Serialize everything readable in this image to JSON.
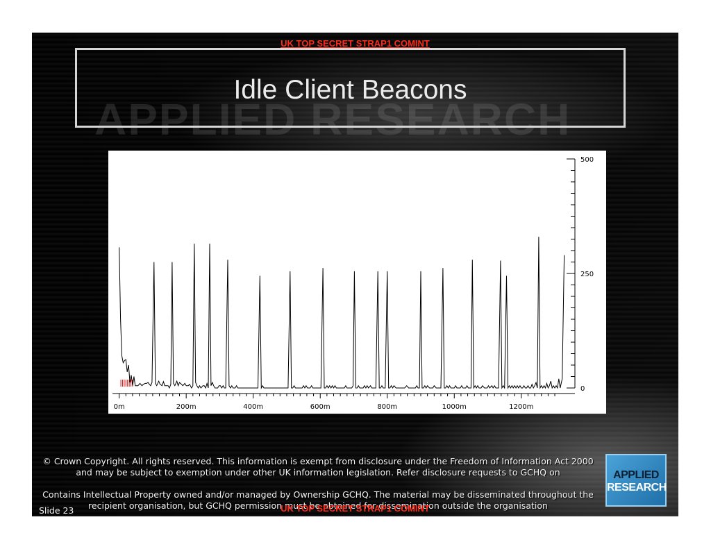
{
  "classification": "UK TOP SECRET STRAP1 COMINT",
  "watermark": "APPLIED RESEARCH",
  "title": "Idle Client Beacons",
  "copyright": [
    "© Crown Copyright. All rights reserved. This information is exempt from disclosure under the Freedom of Information Act 2000 and may be subject to exemption under other UK information legislation. Refer disclosure requests to GCHQ on",
    "Contains Intellectual Property owned and/or managed by Ownership GCHQ. The material may be disseminated throughout the recipient organisation, but GCHQ permission must be obtained for dissemination outside the organisation"
  ],
  "slide_number": "Slide 23",
  "logo": {
    "line1": "APPLIED",
    "line2": "RESEARCH"
  },
  "colors": {
    "classification": "#ff2a1a",
    "logo": "#3a90c8",
    "trace": "#000000",
    "markers": "#e01010"
  },
  "chart_data": {
    "type": "line",
    "title": "",
    "xlabel": "",
    "ylabel": "",
    "x_ticks": [
      "0m",
      "200m",
      "400m",
      "600m",
      "800m",
      "1000m",
      "1200m"
    ],
    "y_ticks": [
      "0",
      "250",
      "500"
    ],
    "xlim_minutes": [
      -20,
      1360
    ],
    "ylim": [
      0,
      500
    ],
    "grid": false,
    "y_axis_side": "right",
    "series": [
      {
        "name": "",
        "points": [
          [
            0,
            307
          ],
          [
            4,
            150
          ],
          [
            8,
            70
          ],
          [
            12,
            55
          ],
          [
            16,
            60
          ],
          [
            20,
            62
          ],
          [
            24,
            35
          ],
          [
            28,
            50
          ],
          [
            32,
            12
          ],
          [
            36,
            28
          ],
          [
            40,
            5
          ],
          [
            44,
            25
          ],
          [
            48,
            5
          ],
          [
            56,
            5
          ],
          [
            62,
            10
          ],
          [
            68,
            5
          ],
          [
            72,
            8
          ],
          [
            78,
            10
          ],
          [
            82,
            10
          ],
          [
            86,
            12
          ],
          [
            90,
            8
          ],
          [
            94,
            5
          ],
          [
            98,
            12
          ],
          [
            104,
            275
          ],
          [
            108,
            10
          ],
          [
            112,
            5
          ],
          [
            118,
            15
          ],
          [
            122,
            8
          ],
          [
            128,
            5
          ],
          [
            132,
            14
          ],
          [
            136,
            5
          ],
          [
            140,
            5
          ],
          [
            146,
            5
          ],
          [
            150,
            0
          ],
          [
            154,
            8
          ],
          [
            158,
            275
          ],
          [
            162,
            10
          ],
          [
            166,
            5
          ],
          [
            172,
            15
          ],
          [
            176,
            5
          ],
          [
            180,
            12
          ],
          [
            186,
            8
          ],
          [
            190,
            5
          ],
          [
            196,
            10
          ],
          [
            200,
            5
          ],
          [
            206,
            5
          ],
          [
            210,
            8
          ],
          [
            216,
            0
          ],
          [
            220,
            5
          ],
          [
            224,
            315
          ],
          [
            228,
            12
          ],
          [
            232,
            5
          ],
          [
            236,
            0
          ],
          [
            240,
            5
          ],
          [
            244,
            0
          ],
          [
            250,
            5
          ],
          [
            254,
            5
          ],
          [
            258,
            0
          ],
          [
            262,
            10
          ],
          [
            266,
            0
          ],
          [
            270,
            315
          ],
          [
            274,
            5
          ],
          [
            278,
            12
          ],
          [
            282,
            5
          ],
          [
            286,
            0
          ],
          [
            290,
            0
          ],
          [
            294,
            0
          ],
          [
            298,
            5
          ],
          [
            302,
            5
          ],
          [
            306,
            0
          ],
          [
            310,
            5
          ],
          [
            314,
            0
          ],
          [
            318,
            0
          ],
          [
            324,
            280
          ],
          [
            328,
            5
          ],
          [
            332,
            0
          ],
          [
            336,
            5
          ],
          [
            340,
            0
          ],
          [
            346,
            0
          ],
          [
            350,
            5
          ],
          [
            354,
            0
          ],
          [
            360,
            0
          ],
          [
            366,
            0
          ],
          [
            372,
            0
          ],
          [
            380,
            0
          ],
          [
            386,
            0
          ],
          [
            392,
            0
          ],
          [
            398,
            0
          ],
          [
            402,
            0
          ],
          [
            406,
            0
          ],
          [
            410,
            0
          ],
          [
            414,
            0
          ],
          [
            420,
            245
          ],
          [
            424,
            0
          ],
          [
            428,
            5
          ],
          [
            432,
            0
          ],
          [
            438,
            0
          ],
          [
            444,
            0
          ],
          [
            450,
            0
          ],
          [
            456,
            0
          ],
          [
            462,
            0
          ],
          [
            468,
            0
          ],
          [
            474,
            0
          ],
          [
            478,
            0
          ],
          [
            482,
            0
          ],
          [
            486,
            0
          ],
          [
            490,
            0
          ],
          [
            494,
            0
          ],
          [
            498,
            0
          ],
          [
            504,
            0
          ],
          [
            510,
            255
          ],
          [
            514,
            0
          ],
          [
            518,
            0
          ],
          [
            522,
            5
          ],
          [
            526,
            0
          ],
          [
            532,
            0
          ],
          [
            536,
            0
          ],
          [
            540,
            0
          ],
          [
            546,
            0
          ],
          [
            550,
            5
          ],
          [
            554,
            0
          ],
          [
            558,
            5
          ],
          [
            562,
            0
          ],
          [
            566,
            0
          ],
          [
            570,
            0
          ],
          [
            574,
            5
          ],
          [
            578,
            0
          ],
          [
            582,
            0
          ],
          [
            586,
            0
          ],
          [
            590,
            0
          ],
          [
            594,
            0
          ],
          [
            598,
            0
          ],
          [
            602,
            0
          ],
          [
            608,
            262
          ],
          [
            612,
            0
          ],
          [
            616,
            0
          ],
          [
            620,
            5
          ],
          [
            624,
            0
          ],
          [
            628,
            5
          ],
          [
            632,
            0
          ],
          [
            636,
            5
          ],
          [
            640,
            0
          ],
          [
            644,
            5
          ],
          [
            648,
            0
          ],
          [
            654,
            0
          ],
          [
            660,
            0
          ],
          [
            664,
            0
          ],
          [
            668,
            0
          ],
          [
            672,
            0
          ],
          [
            676,
            5
          ],
          [
            680,
            0
          ],
          [
            686,
            0
          ],
          [
            690,
            0
          ],
          [
            694,
            0
          ],
          [
            698,
            5
          ],
          [
            702,
            255
          ],
          [
            706,
            0
          ],
          [
            710,
            0
          ],
          [
            714,
            5
          ],
          [
            718,
            0
          ],
          [
            724,
            0
          ],
          [
            728,
            0
          ],
          [
            732,
            5
          ],
          [
            736,
            0
          ],
          [
            740,
            5
          ],
          [
            744,
            0
          ],
          [
            750,
            5
          ],
          [
            754,
            0
          ],
          [
            758,
            0
          ],
          [
            762,
            0
          ],
          [
            766,
            0
          ],
          [
            772,
            255
          ],
          [
            776,
            0
          ],
          [
            780,
            0
          ],
          [
            784,
            5
          ],
          [
            788,
            0
          ],
          [
            794,
            0
          ],
          [
            800,
            255
          ],
          [
            804,
            0
          ],
          [
            808,
            0
          ],
          [
            812,
            5
          ],
          [
            816,
            0
          ],
          [
            820,
            5
          ],
          [
            826,
            0
          ],
          [
            830,
            0
          ],
          [
            836,
            0
          ],
          [
            840,
            0
          ],
          [
            846,
            0
          ],
          [
            852,
            0
          ],
          [
            858,
            5
          ],
          [
            864,
            0
          ],
          [
            868,
            0
          ],
          [
            872,
            0
          ],
          [
            876,
            0
          ],
          [
            880,
            0
          ],
          [
            884,
            0
          ],
          [
            888,
            5
          ],
          [
            892,
            0
          ],
          [
            896,
            0
          ],
          [
            900,
            255
          ],
          [
            904,
            0
          ],
          [
            908,
            0
          ],
          [
            912,
            5
          ],
          [
            916,
            0
          ],
          [
            920,
            5
          ],
          [
            926,
            0
          ],
          [
            930,
            0
          ],
          [
            936,
            0
          ],
          [
            940,
            5
          ],
          [
            946,
            0
          ],
          [
            952,
            0
          ],
          [
            956,
            0
          ],
          [
            960,
            0
          ],
          [
            966,
            262
          ],
          [
            970,
            0
          ],
          [
            974,
            0
          ],
          [
            978,
            5
          ],
          [
            982,
            0
          ],
          [
            986,
            5
          ],
          [
            990,
            0
          ],
          [
            996,
            0
          ],
          [
            1000,
            0
          ],
          [
            1004,
            5
          ],
          [
            1008,
            0
          ],
          [
            1014,
            0
          ],
          [
            1018,
            0
          ],
          [
            1022,
            5
          ],
          [
            1026,
            0
          ],
          [
            1030,
            0
          ],
          [
            1034,
            0
          ],
          [
            1038,
            5
          ],
          [
            1042,
            0
          ],
          [
            1046,
            0
          ],
          [
            1050,
            0
          ],
          [
            1054,
            280
          ],
          [
            1058,
            0
          ],
          [
            1062,
            5
          ],
          [
            1066,
            0
          ],
          [
            1070,
            5
          ],
          [
            1074,
            0
          ],
          [
            1080,
            0
          ],
          [
            1084,
            5
          ],
          [
            1090,
            0
          ],
          [
            1094,
            0
          ],
          [
            1098,
            0
          ],
          [
            1102,
            5
          ],
          [
            1106,
            0
          ],
          [
            1112,
            5
          ],
          [
            1116,
            0
          ],
          [
            1120,
            5
          ],
          [
            1124,
            0
          ],
          [
            1128,
            0
          ],
          [
            1132,
            0
          ],
          [
            1138,
            278
          ],
          [
            1142,
            0
          ],
          [
            1146,
            5
          ],
          [
            1150,
            0
          ],
          [
            1156,
            245
          ],
          [
            1160,
            0
          ],
          [
            1164,
            5
          ],
          [
            1168,
            0
          ],
          [
            1172,
            5
          ],
          [
            1176,
            0
          ],
          [
            1180,
            5
          ],
          [
            1184,
            0
          ],
          [
            1188,
            5
          ],
          [
            1192,
            0
          ],
          [
            1196,
            5
          ],
          [
            1200,
            0
          ],
          [
            1204,
            0
          ],
          [
            1208,
            5
          ],
          [
            1212,
            0
          ],
          [
            1216,
            0
          ],
          [
            1220,
            5
          ],
          [
            1224,
            0
          ],
          [
            1228,
            0
          ],
          [
            1232,
            8
          ],
          [
            1236,
            0
          ],
          [
            1240,
            5
          ],
          [
            1244,
            12
          ],
          [
            1248,
            0
          ],
          [
            1252,
            330
          ],
          [
            1256,
            0
          ],
          [
            1260,
            5
          ],
          [
            1264,
            0
          ],
          [
            1268,
            5
          ],
          [
            1272,
            0
          ],
          [
            1276,
            10
          ],
          [
            1280,
            0
          ],
          [
            1284,
            5
          ],
          [
            1288,
            15
          ],
          [
            1292,
            0
          ],
          [
            1296,
            5
          ],
          [
            1300,
            0
          ],
          [
            1304,
            5
          ],
          [
            1308,
            0
          ],
          [
            1312,
            20
          ],
          [
            1316,
            0
          ],
          [
            1322,
            20
          ],
          [
            1328,
            290
          ]
        ]
      }
    ],
    "markers_minutes": [
      5,
      10,
      15,
      20,
      25,
      30,
      35,
      40
    ]
  }
}
